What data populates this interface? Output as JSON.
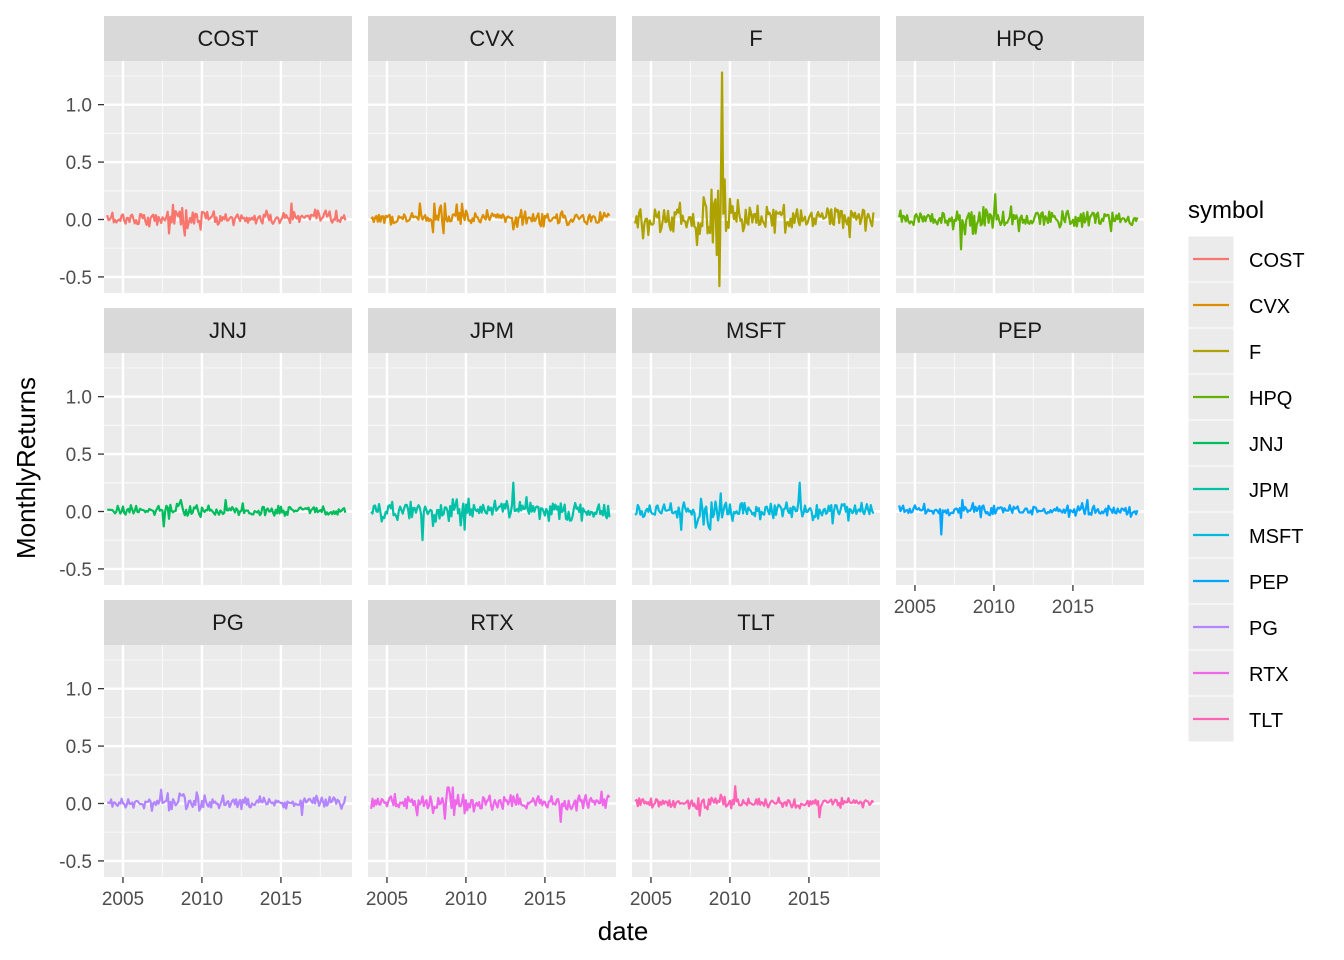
{
  "chart_data": {
    "type": "line",
    "facet_layout": "wrap, 4 columns",
    "xlabel": "date",
    "ylabel": "MonthlyReturns",
    "xlim": [
      2003.8,
      2019.5
    ],
    "ylim": [
      -0.64,
      1.38
    ],
    "x_ticks": [
      2005,
      2010,
      2015
    ],
    "y_ticks": [
      -0.5,
      0.0,
      0.5,
      1.0
    ],
    "y_tick_labels": [
      "-0.5",
      "0.0",
      "0.5",
      "1.0"
    ],
    "grid": true,
    "legend": {
      "title": "symbol",
      "placement": "right",
      "entries": [
        "COST",
        "CVX",
        "F",
        "HPQ",
        "JNJ",
        "JPM",
        "MSFT",
        "PEP",
        "PG",
        "RTX",
        "TLT"
      ]
    },
    "panels": [
      {
        "symbol": "COST",
        "color": "#F8766D",
        "volatility": 0.055,
        "min": -0.14,
        "max": 0.14
      },
      {
        "symbol": "CVX",
        "color": "#DB8E00",
        "volatility": 0.055,
        "min": -0.12,
        "max": 0.14
      },
      {
        "symbol": "F",
        "color": "#AEA200",
        "volatility": 0.11,
        "min": -0.58,
        "max": 1.28
      },
      {
        "symbol": "HPQ",
        "color": "#64B200",
        "volatility": 0.075,
        "min": -0.26,
        "max": 0.22
      },
      {
        "symbol": "JNJ",
        "color": "#00BD5C",
        "volatility": 0.04,
        "min": -0.13,
        "max": 0.1
      },
      {
        "symbol": "JPM",
        "color": "#00C1A7",
        "volatility": 0.075,
        "min": -0.25,
        "max": 0.25
      },
      {
        "symbol": "MSFT",
        "color": "#00BADE",
        "volatility": 0.065,
        "min": -0.16,
        "max": 0.25
      },
      {
        "symbol": "PEP",
        "color": "#00A6FF",
        "volatility": 0.04,
        "min": -0.2,
        "max": 0.1
      },
      {
        "symbol": "PG",
        "color": "#B385FF",
        "volatility": 0.045,
        "min": -0.1,
        "max": 0.12
      },
      {
        "symbol": "RTX",
        "color": "#EF67EB",
        "volatility": 0.06,
        "min": -0.16,
        "max": 0.14
      },
      {
        "symbol": "TLT",
        "color": "#FF63B6",
        "volatility": 0.04,
        "min": -0.12,
        "max": 0.15
      }
    ]
  }
}
